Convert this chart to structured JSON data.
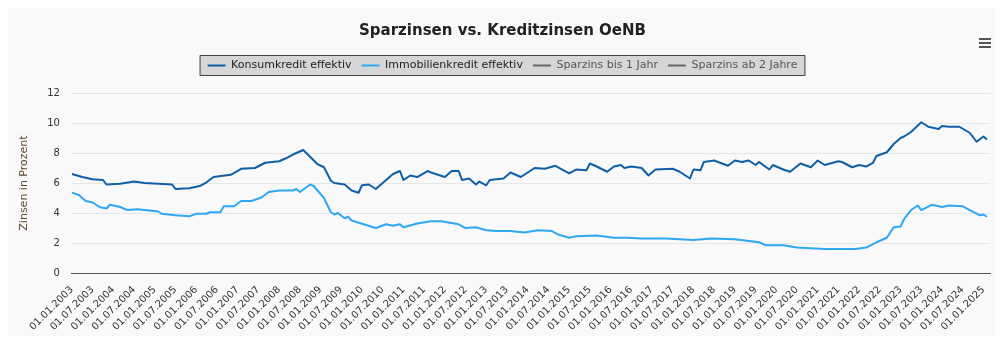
{
  "chart_data": {
    "type": "line",
    "title": "Sparzinsen vs. Kreditzinsen OeNB",
    "ylabel": "Zinsen in Prozent",
    "legend": "top",
    "grid": "y",
    "line_style": "solid",
    "xlim": [
      "2003-01",
      "2025-03"
    ],
    "ylim": [
      0,
      12
    ],
    "yticks": [
      0,
      2,
      4,
      6,
      8,
      10,
      12
    ],
    "xticks": [
      {
        "value": "2003-01",
        "label": "01.01.2003"
      },
      {
        "value": "2003-07",
        "label": "01.07.2003"
      },
      {
        "value": "2004-01",
        "label": "01.01.2004"
      },
      {
        "value": "2004-07",
        "label": "01.07.2004"
      },
      {
        "value": "2005-01",
        "label": "01.01.2005"
      },
      {
        "value": "2005-07",
        "label": "01.07.2005"
      },
      {
        "value": "2006-01",
        "label": "01.01.2006"
      },
      {
        "value": "2006-07",
        "label": "01.07.2006"
      },
      {
        "value": "2007-01",
        "label": "01.01.2007"
      },
      {
        "value": "2007-07",
        "label": "01.07.2007"
      },
      {
        "value": "2008-01",
        "label": "01.01.2008"
      },
      {
        "value": "2008-07",
        "label": "01.07.2008"
      },
      {
        "value": "2009-01",
        "label": "01.01.2009"
      },
      {
        "value": "2009-07",
        "label": "01.07.2009"
      },
      {
        "value": "2010-01",
        "label": "01.01.2010"
      },
      {
        "value": "2010-07",
        "label": "01.07.2010"
      },
      {
        "value": "2011-01",
        "label": "01.01.2011"
      },
      {
        "value": "2011-07",
        "label": "01.07.2011"
      },
      {
        "value": "2012-01",
        "label": "01.01.2012"
      },
      {
        "value": "2012-07",
        "label": "01.07.2012"
      },
      {
        "value": "2013-01",
        "label": "01.01.2013"
      },
      {
        "value": "2013-07",
        "label": "01.07.2013"
      },
      {
        "value": "2014-01",
        "label": "01.01.2014"
      },
      {
        "value": "2014-07",
        "label": "01.07.2014"
      },
      {
        "value": "2015-01",
        "label": "01.01.2015"
      },
      {
        "value": "2015-07",
        "label": "01.07.2015"
      },
      {
        "value": "2016-01",
        "label": "01.01.2016"
      },
      {
        "value": "2016-07",
        "label": "01.07.2016"
      },
      {
        "value": "2017-01",
        "label": "01.01.2017"
      },
      {
        "value": "2017-07",
        "label": "01.07.2017"
      },
      {
        "value": "2018-01",
        "label": "01.01.2018"
      },
      {
        "value": "2018-07",
        "label": "01.07.2018"
      },
      {
        "value": "2019-01",
        "label": "01.01.2019"
      },
      {
        "value": "2019-07",
        "label": "01.07.2019"
      },
      {
        "value": "2020-01",
        "label": "01.01.2020"
      },
      {
        "value": "2020-07",
        "label": "01.07.2020"
      },
      {
        "value": "2021-01",
        "label": "01.01.2021"
      },
      {
        "value": "2021-07",
        "label": "01.07.2021"
      },
      {
        "value": "2022-01",
        "label": "01.01.2022"
      },
      {
        "value": "2022-07",
        "label": "01.07.2022"
      },
      {
        "value": "2023-01",
        "label": "01.01.2023"
      },
      {
        "value": "2023-07",
        "label": "01.07.2023"
      },
      {
        "value": "2024-01",
        "label": "01.01.2024"
      },
      {
        "value": "2024-07",
        "label": "01.07.2024"
      },
      {
        "value": "2025-01",
        "label": "01.01.2025"
      }
    ],
    "series": [
      {
        "name": "Konsumkredit effektiv",
        "color": "#0f5fa8",
        "x": [
          "2003-01",
          "2003-04",
          "2003-07",
          "2003-10",
          "2003-11",
          "2004-03",
          "2004-07",
          "2004-10",
          "2005-02",
          "2005-06",
          "2005-07",
          "2005-11",
          "2006-02",
          "2006-04",
          "2006-06",
          "2006-11",
          "2007-02",
          "2007-06",
          "2007-09",
          "2008-01",
          "2008-03",
          "2008-05",
          "2008-08",
          "2008-12",
          "2009-02",
          "2009-04",
          "2009-05",
          "2009-08",
          "2009-10",
          "2009-12",
          "2010-01",
          "2010-03",
          "2010-05",
          "2010-08",
          "2010-10",
          "2010-12",
          "2011-01",
          "2011-03",
          "2011-05",
          "2011-08",
          "2011-09",
          "2012-01",
          "2012-03",
          "2012-05",
          "2012-06",
          "2012-08",
          "2012-10",
          "2012-11",
          "2013-01",
          "2013-02",
          "2013-06",
          "2013-08",
          "2013-11",
          "2014-03",
          "2014-06",
          "2014-09",
          "2015-01",
          "2015-03",
          "2015-06",
          "2015-07",
          "2015-09",
          "2015-12",
          "2016-02",
          "2016-04",
          "2016-05",
          "2016-07",
          "2016-10",
          "2016-12",
          "2017-02",
          "2017-07",
          "2017-09",
          "2017-12",
          "2018-01",
          "2018-03",
          "2018-04",
          "2018-07",
          "2018-11",
          "2019-01",
          "2019-03",
          "2019-05",
          "2019-07",
          "2019-08",
          "2019-11",
          "2019-12",
          "2020-03",
          "2020-05",
          "2020-08",
          "2020-11",
          "2021-01",
          "2021-03",
          "2021-07",
          "2021-08",
          "2021-11",
          "2022-01",
          "2022-03",
          "2022-05",
          "2022-06",
          "2022-09",
          "2022-11",
          "2023-01",
          "2023-02",
          "2023-04",
          "2023-07",
          "2023-09",
          "2023-12",
          "2024-01",
          "2024-03",
          "2024-06",
          "2024-09",
          "2024-11",
          "2025-01",
          "2025-02"
        ],
        "values": [
          6.6,
          6.4,
          6.25,
          6.2,
          5.9,
          5.95,
          6.1,
          6.0,
          5.95,
          5.9,
          5.6,
          5.65,
          5.8,
          6.05,
          6.4,
          6.55,
          6.95,
          7.0,
          7.35,
          7.45,
          7.65,
          7.9,
          8.2,
          7.28,
          7.05,
          6.15,
          6.0,
          5.9,
          5.5,
          5.35,
          5.85,
          5.9,
          5.6,
          6.2,
          6.6,
          6.8,
          6.2,
          6.5,
          6.4,
          6.8,
          6.7,
          6.4,
          6.8,
          6.8,
          6.2,
          6.3,
          5.9,
          6.1,
          5.85,
          6.2,
          6.3,
          6.7,
          6.4,
          7.0,
          6.95,
          7.15,
          6.65,
          6.9,
          6.85,
          7.3,
          7.1,
          6.75,
          7.1,
          7.2,
          7.0,
          7.1,
          7.0,
          6.5,
          6.9,
          6.95,
          6.75,
          6.3,
          6.9,
          6.85,
          7.4,
          7.5,
          7.15,
          7.5,
          7.4,
          7.5,
          7.2,
          7.4,
          6.9,
          7.2,
          6.9,
          6.75,
          7.3,
          7.05,
          7.5,
          7.2,
          7.45,
          7.4,
          7.05,
          7.2,
          7.1,
          7.35,
          7.8,
          8.05,
          8.6,
          9.0,
          9.1,
          9.4,
          10.05,
          9.75,
          9.6,
          9.8,
          9.75,
          9.75,
          9.35,
          8.75,
          9.1,
          8.9
        ]
      },
      {
        "name": "Immobilienkredit effektiv",
        "color": "#2ea7f5",
        "x": [
          "2003-01",
          "2003-03",
          "2003-05",
          "2003-07",
          "2003-09",
          "2003-11",
          "2003-12",
          "2004-03",
          "2004-05",
          "2004-08",
          "2004-10",
          "2005-02",
          "2005-03",
          "2005-07",
          "2005-11",
          "2006-01",
          "2006-04",
          "2006-05",
          "2006-08",
          "2006-09",
          "2006-12",
          "2007-02",
          "2007-05",
          "2007-08",
          "2007-10",
          "2008-01",
          "2008-05",
          "2008-06",
          "2008-07",
          "2008-10",
          "2008-11",
          "2009-02",
          "2009-04",
          "2009-05",
          "2009-06",
          "2009-08",
          "2009-09",
          "2009-10",
          "2010-05",
          "2010-08",
          "2010-10",
          "2010-12",
          "2011-01",
          "2011-05",
          "2011-09",
          "2011-12",
          "2012-05",
          "2012-07",
          "2012-10",
          "2013-01",
          "2013-04",
          "2013-08",
          "2013-12",
          "2014-04",
          "2014-08",
          "2014-10",
          "2015-01",
          "2015-03",
          "2015-09",
          "2016-02",
          "2016-06",
          "2016-10",
          "2017-05",
          "2018-01",
          "2018-06",
          "2019-01",
          "2019-08",
          "2019-10",
          "2020-03",
          "2020-07",
          "2021-03",
          "2021-12",
          "2022-03",
          "2022-06",
          "2022-09",
          "2022-11",
          "2023-01",
          "2023-02",
          "2023-04",
          "2023-06",
          "2023-07",
          "2023-10",
          "2024-01",
          "2024-03",
          "2024-07",
          "2024-09",
          "2024-12",
          "2025-01",
          "2025-02"
        ],
        "values": [
          5.36,
          5.2,
          4.8,
          4.7,
          4.4,
          4.3,
          4.55,
          4.4,
          4.2,
          4.25,
          4.2,
          4.1,
          3.95,
          3.85,
          3.78,
          3.95,
          3.95,
          4.05,
          4.05,
          4.45,
          4.45,
          4.8,
          4.8,
          5.05,
          5.4,
          5.5,
          5.5,
          5.6,
          5.4,
          5.9,
          5.8,
          5.0,
          4.05,
          3.9,
          4.0,
          3.65,
          3.75,
          3.5,
          3.0,
          3.25,
          3.15,
          3.25,
          3.05,
          3.3,
          3.45,
          3.45,
          3.25,
          3.0,
          3.05,
          2.85,
          2.8,
          2.8,
          2.7,
          2.85,
          2.8,
          2.55,
          2.35,
          2.45,
          2.5,
          2.35,
          2.35,
          2.3,
          2.3,
          2.2,
          2.3,
          2.25,
          2.05,
          1.85,
          1.85,
          1.7,
          1.6,
          1.6,
          1.7,
          2.05,
          2.35,
          3.05,
          3.1,
          3.6,
          4.2,
          4.5,
          4.2,
          4.55,
          4.4,
          4.5,
          4.45,
          4.2,
          3.85,
          3.9,
          3.75
        ]
      },
      {
        "name": "Sparzins bis 1 Jahr",
        "color": "#666666"
      },
      {
        "name": "Sparzins ab 2 Jahre",
        "color": "#666666"
      }
    ]
  }
}
